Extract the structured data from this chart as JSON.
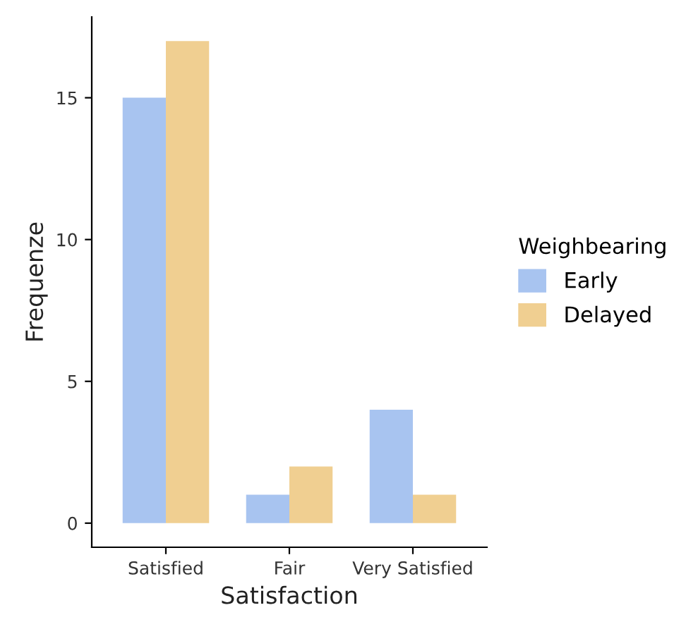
{
  "chart_data": {
    "type": "bar",
    "xlabel": "Satisfaction",
    "ylabel": "Frequenze",
    "legend_title": "Weighbearing",
    "categories": [
      "Satisfied",
      "Fair",
      "Very Satisfied"
    ],
    "series": [
      {
        "name": "Early",
        "color": "#a8c4f0",
        "values": [
          15,
          1,
          4
        ]
      },
      {
        "name": "Delayed",
        "color": "#f0cf91",
        "values": [
          17,
          2,
          1
        ]
      }
    ],
    "ylim": [
      -0.85,
      17.85
    ],
    "yticks": [
      0,
      5,
      10,
      15
    ],
    "grid": false,
    "legend": "right"
  }
}
